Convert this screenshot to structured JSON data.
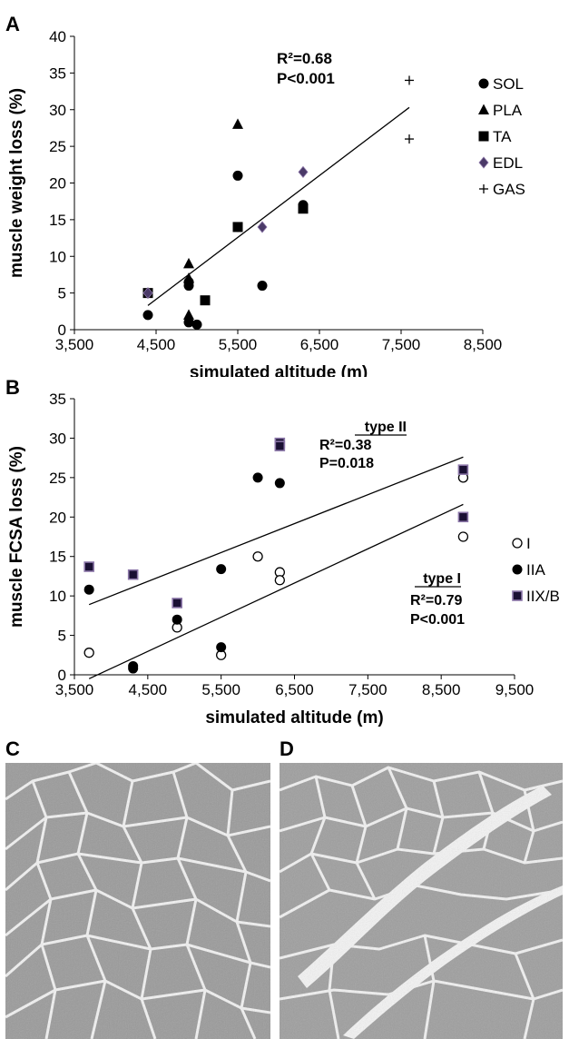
{
  "panels": {
    "a": "A",
    "b": "B",
    "c": "C",
    "d": "D"
  },
  "chart_data": [
    {
      "type": "scatter",
      "xlabel": "simulated altitude (m)",
      "ylabel": "muscle weight loss (%)",
      "xlim": [
        3500,
        8500
      ],
      "ylim": [
        0,
        40
      ],
      "x_ticks": [
        "3,500",
        "4,500",
        "5,500",
        "6,500",
        "7,500",
        "8,500"
      ],
      "y_ticks": [
        "0",
        "5",
        "10",
        "15",
        "20",
        "25",
        "30",
        "35",
        "40"
      ],
      "grid": false,
      "legend_position": "right",
      "series": [
        {
          "name": "SOL",
          "marker": "circle",
          "points": [
            [
              4400,
              2
            ],
            [
              4900,
              6
            ],
            [
              4900,
              6.5
            ],
            [
              4900,
              1
            ],
            [
              5000,
              0.7
            ],
            [
              5500,
              21
            ],
            [
              5500,
              14
            ],
            [
              5800,
              6
            ],
            [
              6300,
              17
            ]
          ]
        },
        {
          "name": "PLA",
          "marker": "triangle",
          "points": [
            [
              4900,
              9
            ],
            [
              4900,
              7
            ],
            [
              4900,
              2
            ],
            [
              5500,
              28
            ]
          ]
        },
        {
          "name": "TA",
          "marker": "square",
          "points": [
            [
              4400,
              5
            ],
            [
              5100,
              4
            ],
            [
              5500,
              14
            ],
            [
              6300,
              16.5
            ]
          ]
        },
        {
          "name": "EDL",
          "marker": "diamond",
          "points": [
            [
              4400,
              5
            ],
            [
              5800,
              14
            ],
            [
              6300,
              21.5
            ]
          ]
        },
        {
          "name": "GAS",
          "marker": "plus",
          "points": [
            [
              7600,
              34
            ],
            [
              7600,
              26
            ]
          ]
        }
      ],
      "trendlines": [
        {
          "from": [
            4400,
            3.3
          ],
          "to": [
            7600,
            30.3
          ]
        }
      ],
      "annotations": [
        "R²=0.68",
        "P<0.001"
      ]
    },
    {
      "type": "scatter",
      "xlabel": "simulated altitude (m)",
      "ylabel": "muscle FCSA loss (%)",
      "xlim": [
        3500,
        9500
      ],
      "ylim": [
        0,
        35
      ],
      "x_ticks": [
        "3,500",
        "4,500",
        "5,500",
        "6,500",
        "7,500",
        "8,500",
        "9,500"
      ],
      "y_ticks": [
        "0",
        "5",
        "10",
        "15",
        "20",
        "25",
        "30",
        "35"
      ],
      "grid": false,
      "legend_position": "right",
      "series": [
        {
          "name": "I",
          "marker": "open-circle",
          "points": [
            [
              3700,
              2.8
            ],
            [
              4900,
              6
            ],
            [
              5500,
              2.5
            ],
            [
              6000,
              15
            ],
            [
              6300,
              13
            ],
            [
              6300,
              12
            ],
            [
              8800,
              25
            ],
            [
              8800,
              17.5
            ]
          ]
        },
        {
          "name": "IIA",
          "marker": "circle",
          "points": [
            [
              3700,
              10.8
            ],
            [
              4300,
              1.1
            ],
            [
              4300,
              0.8
            ],
            [
              4900,
              7
            ],
            [
              5500,
              13.4
            ],
            [
              5500,
              3.5
            ],
            [
              6000,
              25
            ],
            [
              6300,
              24.3
            ]
          ]
        },
        {
          "name": "IIX/B",
          "marker": "square-purple",
          "points": [
            [
              3700,
              13.7
            ],
            [
              4300,
              12.7
            ],
            [
              4900,
              9.1
            ],
            [
              6300,
              29.4
            ],
            [
              6300,
              29
            ],
            [
              8800,
              26
            ],
            [
              8800,
              20
            ]
          ]
        }
      ],
      "trendlines": [
        {
          "from": [
            3700,
            8.9
          ],
          "to": [
            8800,
            27.6
          ]
        },
        {
          "from": [
            3700,
            -0.5
          ],
          "to": [
            8800,
            21.6
          ]
        }
      ],
      "annotations": [
        {
          "title": "type II",
          "lines": [
            "R²=0.38",
            "P=0.018"
          ]
        },
        {
          "title": "type I",
          "lines": [
            "R²=0.79",
            "P<0.001"
          ]
        }
      ]
    }
  ]
}
